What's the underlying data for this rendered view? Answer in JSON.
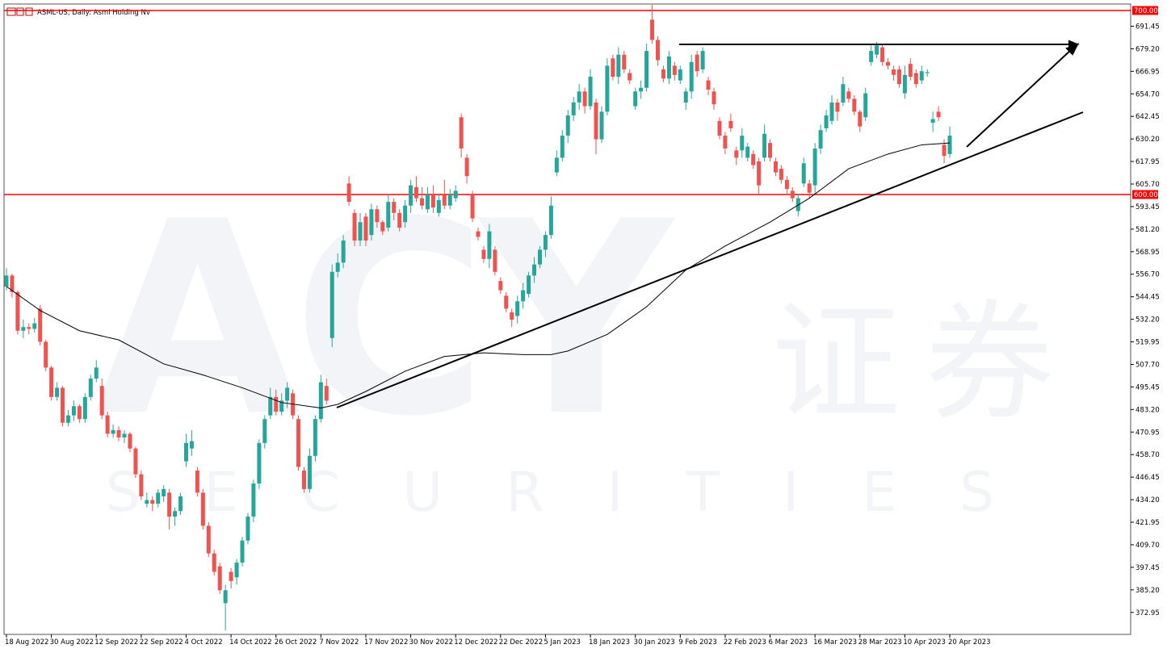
{
  "chart_data": {
    "type": "candlestick",
    "title": "ASML-US, Daily:  Asml Holding Nv",
    "watermark": {
      "brand": "ACY",
      "chinese": "证券",
      "sub": "SECURITIES"
    },
    "up_color": "#26a69a",
    "down_color": "#ef5350",
    "categories": [
      "18 Aug 2022",
      null,
      null,
      null,
      null,
      null,
      null,
      null,
      "30 Aug 2022",
      null,
      null,
      null,
      null,
      null,
      null,
      null,
      "12 Sep 2022",
      null,
      null,
      null,
      null,
      null,
      null,
      null,
      "22 Sep 2022",
      null,
      null,
      null,
      null,
      null,
      null,
      null,
      "4 Oct 2022",
      null,
      null,
      null,
      null,
      null,
      null,
      null,
      "14 Oct 2022",
      null,
      null,
      null,
      null,
      null,
      null,
      null,
      "26 Oct 2022",
      null,
      null,
      null,
      null,
      null,
      null,
      null,
      "7 Nov 2022",
      null,
      null,
      null,
      null,
      null,
      null,
      null,
      "17 Nov 2022",
      null,
      null,
      null,
      null,
      null,
      null,
      null,
      "30 Nov 2022",
      null,
      null,
      null,
      null,
      null,
      null,
      null,
      "12 Dec 2022",
      null,
      null,
      null,
      null,
      null,
      null,
      null,
      "22 Dec 2022",
      null,
      null,
      null,
      null,
      null,
      null,
      null,
      "5 Jan 2023",
      null,
      null,
      null,
      null,
      null,
      null,
      null,
      "18 Jan 2023",
      null,
      null,
      null,
      null,
      null,
      null,
      null,
      "30 Jan 2023",
      null,
      null,
      null,
      null,
      null,
      null,
      null,
      "9 Feb 2023",
      null,
      null,
      null,
      null,
      null,
      null,
      null,
      "22 Feb 2023",
      null,
      null,
      null,
      null,
      null,
      null,
      null,
      "6 Mar 2023",
      null,
      null,
      null,
      null,
      null,
      null,
      null,
      "16 Mar 2023",
      null,
      null,
      null,
      null,
      null,
      null,
      null,
      "28 Mar 2023",
      null,
      null,
      null,
      null,
      null,
      null,
      null,
      "10 Apr 2023",
      null,
      null,
      null,
      null,
      null,
      null,
      null,
      "20 Apr 2023"
    ],
    "ohlc": [
      [
        550,
        560,
        548,
        556
      ],
      [
        556,
        557,
        544,
        547
      ],
      [
        547,
        548,
        524,
        526
      ],
      [
        526,
        532,
        522,
        528
      ],
      [
        528,
        530,
        524,
        527
      ],
      [
        527,
        533,
        525,
        530
      ],
      [
        538,
        540,
        518,
        520
      ],
      [
        520,
        521,
        504,
        506
      ],
      [
        506,
        507,
        488,
        490
      ],
      [
        490,
        498,
        488,
        495
      ],
      [
        495,
        496,
        474,
        476
      ],
      [
        476,
        483,
        474,
        480
      ],
      [
        480,
        488,
        477,
        485
      ],
      [
        485,
        486,
        476,
        478
      ],
      [
        478,
        492,
        476,
        490
      ],
      [
        490,
        502,
        488,
        500
      ],
      [
        500,
        510,
        498,
        506
      ],
      [
        496,
        500,
        478,
        480
      ],
      [
        480,
        482,
        468,
        470
      ],
      [
        470,
        475,
        468,
        472
      ],
      [
        472,
        474,
        466,
        468
      ],
      [
        468,
        472,
        465,
        470
      ],
      [
        470,
        471,
        460,
        462
      ],
      [
        462,
        463,
        446,
        448
      ],
      [
        448,
        450,
        434,
        436
      ],
      [
        432,
        438,
        430,
        434
      ],
      [
        434,
        436,
        428,
        432
      ],
      [
        432,
        440,
        430,
        438
      ],
      [
        436,
        442,
        433,
        440
      ],
      [
        438,
        440,
        418,
        425
      ],
      [
        425,
        430,
        420,
        428
      ],
      [
        428,
        438,
        426,
        436
      ],
      [
        455,
        470,
        452,
        465
      ],
      [
        462,
        472,
        458,
        466
      ],
      [
        450,
        452,
        436,
        438
      ],
      [
        438,
        440,
        418,
        420
      ],
      [
        420,
        422,
        403,
        405
      ],
      [
        405,
        407,
        393,
        395
      ],
      [
        398,
        400,
        383,
        385
      ],
      [
        378,
        388,
        363,
        385
      ],
      [
        395,
        397,
        386,
        390
      ],
      [
        392,
        402,
        388,
        400
      ],
      [
        400,
        414,
        398,
        412
      ],
      [
        412,
        427,
        410,
        425
      ],
      [
        425,
        445,
        422,
        443
      ],
      [
        443,
        467,
        440,
        465
      ],
      [
        465,
        480,
        462,
        478
      ],
      [
        480,
        495,
        478,
        490
      ],
      [
        490,
        494,
        480,
        482
      ],
      [
        482,
        492,
        480,
        488
      ],
      [
        488,
        498,
        484,
        495
      ],
      [
        492,
        494,
        478,
        480
      ],
      [
        478,
        480,
        450,
        452
      ],
      [
        450,
        452,
        438,
        440
      ],
      [
        440,
        462,
        438,
        458
      ],
      [
        458,
        480,
        455,
        478
      ],
      [
        478,
        502,
        476,
        498
      ],
      [
        496,
        500,
        486,
        488
      ],
      [
        522,
        562,
        517,
        558
      ],
      [
        558,
        568,
        555,
        563
      ],
      [
        563,
        578,
        560,
        575
      ],
      [
        606,
        610,
        594,
        596
      ],
      [
        590,
        592,
        572,
        575
      ],
      [
        575,
        590,
        572,
        585
      ],
      [
        588,
        590,
        572,
        575
      ],
      [
        578,
        595,
        575,
        592
      ],
      [
        592,
        594,
        582,
        585
      ],
      [
        585,
        586,
        578,
        580
      ],
      [
        582,
        600,
        580,
        596
      ],
      [
        596,
        598,
        586,
        590
      ],
      [
        590,
        592,
        580,
        582
      ],
      [
        585,
        597,
        582,
        594
      ],
      [
        594,
        608,
        590,
        605
      ],
      [
        604,
        610,
        596,
        598
      ],
      [
        598,
        604,
        592,
        594
      ],
      [
        592,
        604,
        590,
        600
      ],
      [
        600,
        605,
        590,
        593
      ],
      [
        590,
        600,
        588,
        597
      ],
      [
        600,
        608,
        592,
        594
      ],
      [
        594,
        603,
        592,
        600
      ],
      [
        598,
        605,
        596,
        602
      ],
      [
        642,
        644,
        620,
        625
      ],
      [
        620,
        622,
        606,
        610
      ],
      [
        600,
        602,
        585,
        587
      ],
      [
        580,
        582,
        575,
        577
      ],
      [
        570,
        572,
        563,
        565
      ],
      [
        565,
        584,
        560,
        580
      ],
      [
        570,
        572,
        556,
        558
      ],
      [
        553,
        555,
        546,
        548
      ],
      [
        545,
        547,
        536,
        538
      ],
      [
        536,
        538,
        528,
        532
      ],
      [
        534,
        545,
        530,
        542
      ],
      [
        542,
        552,
        538,
        548
      ],
      [
        546,
        558,
        544,
        556
      ],
      [
        556,
        566,
        552,
        562
      ],
      [
        562,
        572,
        560,
        570
      ],
      [
        570,
        580,
        566,
        578
      ],
      [
        578,
        599,
        576,
        594
      ],
      [
        612,
        624,
        610,
        620
      ],
      [
        620,
        635,
        618,
        632
      ],
      [
        632,
        646,
        628,
        643
      ],
      [
        643,
        653,
        640,
        650
      ],
      [
        650,
        660,
        646,
        656
      ],
      [
        656,
        658,
        644,
        648
      ],
      [
        648,
        668,
        646,
        664
      ],
      [
        650,
        652,
        622,
        630
      ],
      [
        630,
        648,
        628,
        645
      ],
      [
        645,
        674,
        643,
        670
      ],
      [
        674,
        676,
        662,
        664
      ],
      [
        664,
        680,
        660,
        676
      ],
      [
        676,
        678,
        666,
        668
      ],
      [
        666,
        668,
        660,
        662
      ],
      [
        648,
        658,
        646,
        656
      ],
      [
        656,
        662,
        652,
        658
      ],
      [
        658,
        682,
        656,
        678
      ],
      [
        695,
        703,
        682,
        684
      ],
      [
        684,
        686,
        670,
        673
      ],
      [
        668,
        670,
        661,
        663
      ],
      [
        663,
        678,
        660,
        675
      ],
      [
        670,
        672,
        662,
        665
      ],
      [
        662,
        670,
        660,
        668
      ],
      [
        650,
        658,
        646,
        656
      ],
      [
        656,
        676,
        652,
        672
      ],
      [
        676,
        678,
        664,
        667
      ],
      [
        668,
        680,
        666,
        678
      ],
      [
        662,
        664,
        654,
        657
      ],
      [
        656,
        658,
        646,
        649
      ],
      [
        640,
        642,
        630,
        632
      ],
      [
        632,
        634,
        622,
        625
      ],
      [
        640,
        644,
        634,
        636
      ],
      [
        624,
        626,
        616,
        620
      ],
      [
        624,
        636,
        620,
        632
      ],
      [
        620,
        628,
        618,
        626
      ],
      [
        622,
        624,
        614,
        616
      ],
      [
        618,
        620,
        600,
        605
      ],
      [
        620,
        638,
        618,
        633
      ],
      [
        628,
        630,
        618,
        620
      ],
      [
        618,
        620,
        610,
        612
      ],
      [
        614,
        616,
        606,
        608
      ],
      [
        608,
        610,
        600,
        603
      ],
      [
        602,
        604,
        596,
        598
      ],
      [
        591,
        600,
        588,
        598
      ],
      [
        606,
        620,
        604,
        617
      ],
      [
        606,
        608,
        598,
        601
      ],
      [
        605,
        628,
        600,
        625
      ],
      [
        625,
        638,
        622,
        635
      ],
      [
        636,
        646,
        634,
        643
      ],
      [
        640,
        654,
        638,
        650
      ],
      [
        650,
        652,
        640,
        645
      ],
      [
        650,
        664,
        648,
        660
      ],
      [
        656,
        658,
        650,
        652
      ],
      [
        652,
        654,
        643,
        645
      ],
      [
        645,
        646,
        634,
        637
      ],
      [
        642,
        658,
        640,
        655
      ],
      [
        672,
        681,
        670,
        678
      ],
      [
        676,
        683,
        674,
        681
      ],
      [
        680,
        682,
        670,
        672
      ],
      [
        672,
        674,
        668,
        670
      ],
      [
        668,
        670,
        662,
        665
      ],
      [
        668,
        670,
        658,
        660
      ],
      [
        655,
        670,
        652,
        665
      ],
      [
        671,
        674,
        662,
        664
      ],
      [
        666,
        668,
        658,
        660
      ],
      [
        662,
        670,
        660,
        667
      ],
      [
        666,
        668,
        664,
        666.5
      ],
      [
        639,
        645,
        634,
        641
      ],
      [
        645,
        648,
        640,
        642
      ],
      [
        627,
        630,
        617,
        621
      ],
      [
        622,
        637,
        620,
        632
      ]
    ],
    "ma": {
      "color": "#000000",
      "x": [
        0,
        6,
        13,
        20,
        28,
        35,
        42,
        49,
        56,
        59,
        64,
        71,
        78,
        85,
        92,
        97,
        100,
        107,
        114,
        121,
        128,
        136,
        143,
        150,
        157,
        163,
        168
      ],
      "values": [
        550,
        537,
        526,
        521,
        508,
        502,
        495,
        487,
        484,
        486,
        493,
        504,
        512,
        514,
        513,
        513,
        515,
        524,
        539,
        559,
        572,
        585,
        598,
        614,
        622,
        627,
        628
      ]
    },
    "levels": {
      "color": "#ff0000",
      "items": [
        {
          "value": 700,
          "label": "700.00"
        },
        {
          "value": 600,
          "label": "600.00"
        }
      ]
    },
    "ylim": [
      361,
      703.5
    ],
    "yticks": [
      691.45,
      {
        "value": 679.2,
        "label": "679.20"
      },
      666.95,
      {
        "value": 654.7,
        "label": "654.70"
      },
      642.45,
      {
        "value": 630.2,
        "label": "630.20"
      },
      617.95,
      {
        "value": 605.7,
        "label": "605.70"
      },
      593.45,
      {
        "value": 581.2,
        "label": "581.20"
      },
      568.95,
      {
        "value": 556.7,
        "label": "556.70"
      },
      544.45,
      {
        "value": 532.2,
        "label": "532.20"
      },
      519.95,
      {
        "value": 507.7,
        "label": "507.70"
      },
      495.45,
      {
        "value": 483.2,
        "label": "483.20"
      },
      470.95,
      {
        "value": 458.7,
        "label": "458.70"
      },
      446.45,
      {
        "value": 434.2,
        "label": "434.20"
      },
      421.95,
      {
        "value": 409.7,
        "label": "409.70"
      },
      397.45,
      {
        "value": 385.2,
        "label": "385.20"
      },
      372.95
    ],
    "grid": false
  }
}
